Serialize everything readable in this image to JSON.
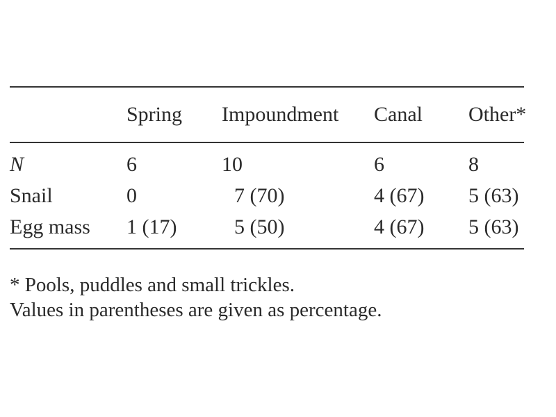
{
  "table": {
    "header": {
      "row_label": "",
      "columns": [
        "Spring",
        "Impoundment",
        "Canal",
        "Other*"
      ]
    },
    "rows": [
      {
        "label": "N",
        "cells": [
          "6",
          "10",
          "6",
          "8"
        ]
      },
      {
        "label": "Snail",
        "cells": [
          "0",
          "7 (70)",
          "4 (67)",
          "5 (63)"
        ]
      },
      {
        "label": "Egg mass",
        "cells": [
          "1 (17)",
          "5 (50)",
          "4 (67)",
          "5 (63)"
        ]
      }
    ]
  },
  "footnotes": [
    "* Pools, puddles and small trickles.",
    "Values in parentheses are given as percentage."
  ]
}
